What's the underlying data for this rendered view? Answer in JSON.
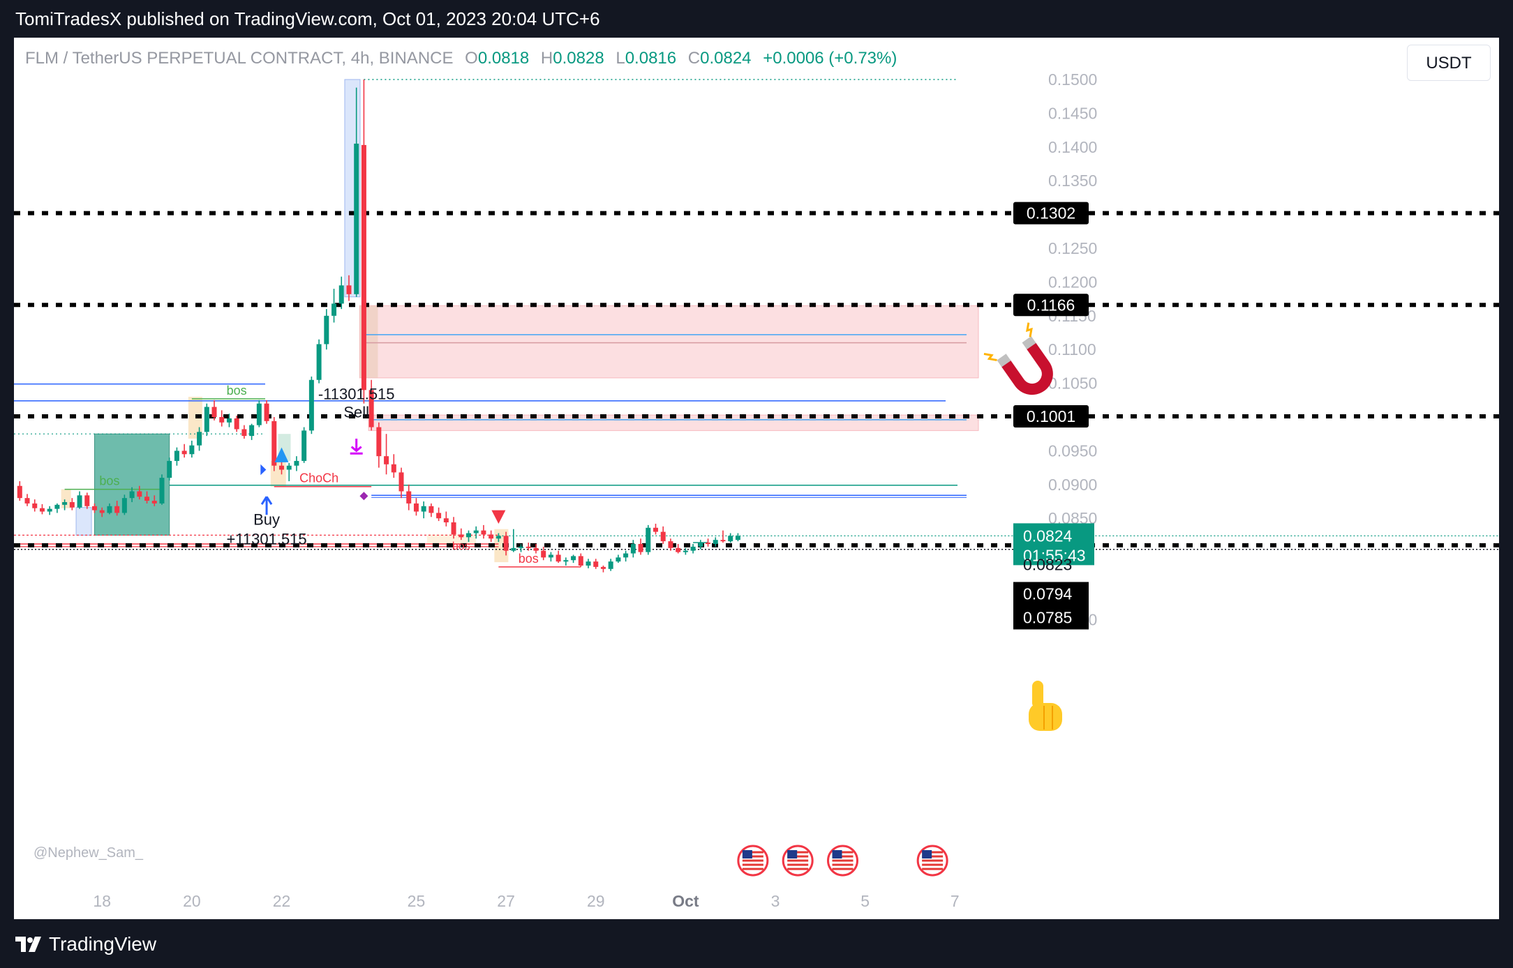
{
  "header": {
    "published_text": "TomiTradesX published on TradingView.com, Oct 01, 2023 20:04 UTC+6"
  },
  "legend": {
    "symbol": "FLM / TetherUS PERPETUAL CONTRACT, 4h, BINANCE",
    "o_label": "O",
    "o_value": "0.0818",
    "h_label": "H",
    "h_value": "0.0828",
    "l_label": "L",
    "l_value": "0.0816",
    "c_label": "C",
    "c_value": "0.0824",
    "change": "+0.0006 (+0.73%)"
  },
  "currency_button": "USDT",
  "watermark": "@Nephew_Sam_",
  "footer": {
    "brand": "TradingView"
  },
  "colors": {
    "up": "#089981",
    "down": "#f23645",
    "background": "#131722",
    "zone_red": "#fcdfe1",
    "zone_blue": "#dbe6fb",
    "zone_orange": "#fbe7c8",
    "zone_teal": "#5fb5a4",
    "price_badge": "#089981",
    "level_badge": "#000000"
  },
  "chart_data": {
    "type": "candlestick",
    "interval": "4h",
    "y_range": [
      0.0675,
      0.1525
    ],
    "y_ticks": [
      "0.0700",
      "0.0850",
      "0.0900",
      "0.0950",
      "0.1050",
      "0.1100",
      "0.1150",
      "0.1200",
      "0.1250",
      "0.1350",
      "0.1400",
      "0.1450",
      "0.1500"
    ],
    "x_ticks": [
      {
        "label": "18",
        "index": 11
      },
      {
        "label": "20",
        "index": 23
      },
      {
        "label": "22",
        "index": 35
      },
      {
        "label": "25",
        "index": 53
      },
      {
        "label": "27",
        "index": 65
      },
      {
        "label": "29",
        "index": 77
      },
      {
        "label": "Oct",
        "index": 89
      },
      {
        "label": "3",
        "index": 101
      },
      {
        "label": "5",
        "index": 113
      },
      {
        "label": "7",
        "index": 125
      }
    ],
    "candles": [
      [
        0.0898,
        0.0905,
        0.0876,
        0.088
      ],
      [
        0.088,
        0.0886,
        0.0868,
        0.0872
      ],
      [
        0.0872,
        0.0878,
        0.086,
        0.0865
      ],
      [
        0.0865,
        0.0871,
        0.0856,
        0.086
      ],
      [
        0.086,
        0.0868,
        0.0855,
        0.0864
      ],
      [
        0.0864,
        0.0872,
        0.0858,
        0.087
      ],
      [
        0.087,
        0.0878,
        0.0862,
        0.0874
      ],
      [
        0.0874,
        0.088,
        0.0862,
        0.0866
      ],
      [
        0.0866,
        0.089,
        0.0864,
        0.0884
      ],
      [
        0.0884,
        0.0888,
        0.0864,
        0.0868
      ],
      [
        0.0868,
        0.0872,
        0.0858,
        0.0862
      ],
      [
        0.0862,
        0.0866,
        0.0852,
        0.0858
      ],
      [
        0.0858,
        0.0872,
        0.0856,
        0.0868
      ],
      [
        0.0868,
        0.0876,
        0.0854,
        0.0858
      ],
      [
        0.0858,
        0.0885,
        0.0855,
        0.088
      ],
      [
        0.088,
        0.0896,
        0.0874,
        0.089
      ],
      [
        0.089,
        0.0898,
        0.0878,
        0.0882
      ],
      [
        0.0882,
        0.089,
        0.0872,
        0.0876
      ],
      [
        0.0876,
        0.0884,
        0.0868,
        0.0872
      ],
      [
        0.0872,
        0.0915,
        0.087,
        0.091
      ],
      [
        0.091,
        0.094,
        0.0906,
        0.0935
      ],
      [
        0.0935,
        0.0955,
        0.0928,
        0.095
      ],
      [
        0.095,
        0.096,
        0.094,
        0.0945
      ],
      [
        0.0945,
        0.0965,
        0.094,
        0.0958
      ],
      [
        0.0958,
        0.0985,
        0.095,
        0.0978
      ],
      [
        0.0978,
        0.102,
        0.0972,
        0.1015
      ],
      [
        0.1015,
        0.1025,
        0.0995,
        0.1
      ],
      [
        0.1,
        0.101,
        0.0986,
        0.0992
      ],
      [
        0.0992,
        0.1005,
        0.0985,
        0.0998
      ],
      [
        0.0998,
        0.1002,
        0.0978,
        0.0982
      ],
      [
        0.0982,
        0.0988,
        0.0968,
        0.0972
      ],
      [
        0.0972,
        0.099,
        0.0966,
        0.0988
      ],
      [
        0.0988,
        0.1025,
        0.0985,
        0.102
      ],
      [
        0.102,
        0.1025,
        0.099,
        0.0994
      ],
      [
        0.0994,
        0.1,
        0.092,
        0.0928
      ],
      [
        0.0928,
        0.0935,
        0.0915,
        0.0922
      ],
      [
        0.0922,
        0.0932,
        0.0905,
        0.0928
      ],
      [
        0.0928,
        0.0942,
        0.092,
        0.0935
      ],
      [
        0.0935,
        0.0985,
        0.0932,
        0.098
      ],
      [
        0.098,
        0.106,
        0.0975,
        0.1055
      ],
      [
        0.1055,
        0.1115,
        0.105,
        0.1108
      ],
      [
        0.1108,
        0.116,
        0.11,
        0.115
      ],
      [
        0.115,
        0.119,
        0.114,
        0.1168
      ],
      [
        0.1168,
        0.1208,
        0.116,
        0.1195
      ],
      [
        0.1195,
        0.121,
        0.1172,
        0.1182
      ],
      [
        0.1182,
        0.1488,
        0.1178,
        0.1405
      ],
      [
        0.1403,
        0.15,
        0.102,
        0.104
      ],
      [
        0.104,
        0.1055,
        0.098,
        0.0985
      ],
      [
        0.0985,
        0.0992,
        0.0925,
        0.0942
      ],
      [
        0.0942,
        0.0975,
        0.0915,
        0.093
      ],
      [
        0.093,
        0.0945,
        0.091,
        0.0918
      ],
      [
        0.0918,
        0.0925,
        0.088,
        0.089
      ],
      [
        0.089,
        0.09,
        0.0862,
        0.0872
      ],
      [
        0.0872,
        0.088,
        0.0854,
        0.086
      ],
      [
        0.086,
        0.0875,
        0.085,
        0.0868
      ],
      [
        0.0868,
        0.0872,
        0.0852,
        0.0858
      ],
      [
        0.0858,
        0.0866,
        0.0846,
        0.085
      ],
      [
        0.085,
        0.086,
        0.0838,
        0.0844
      ],
      [
        0.0844,
        0.0852,
        0.082,
        0.0826
      ],
      [
        0.0826,
        0.0835,
        0.0818,
        0.0822
      ],
      [
        0.0822,
        0.0832,
        0.0815,
        0.0828
      ],
      [
        0.0828,
        0.0838,
        0.082,
        0.0832
      ],
      [
        0.0832,
        0.084,
        0.082,
        0.0826
      ],
      [
        0.0826,
        0.0832,
        0.0815,
        0.082
      ],
      [
        0.082,
        0.0828,
        0.0815,
        0.0824
      ],
      [
        0.0824,
        0.083,
        0.0795,
        0.0802
      ],
      [
        0.0802,
        0.0834,
        0.08,
        0.0806
      ],
      [
        0.0806,
        0.0812,
        0.08,
        0.0808
      ],
      [
        0.0808,
        0.0814,
        0.0802,
        0.0806
      ],
      [
        0.0806,
        0.0812,
        0.0798,
        0.0802
      ],
      [
        0.0802,
        0.0808,
        0.0788,
        0.0792
      ],
      [
        0.0792,
        0.08,
        0.0786,
        0.0796
      ],
      [
        0.0796,
        0.0802,
        0.0784,
        0.0786
      ],
      [
        0.0786,
        0.0792,
        0.078,
        0.0788
      ],
      [
        0.0788,
        0.0796,
        0.0784,
        0.0794
      ],
      [
        0.0794,
        0.0798,
        0.0778,
        0.078
      ],
      [
        0.078,
        0.079,
        0.0776,
        0.0786
      ],
      [
        0.0786,
        0.079,
        0.0775,
        0.0778
      ],
      [
        0.0778,
        0.078,
        0.077,
        0.0775
      ],
      [
        0.0775,
        0.079,
        0.0772,
        0.0786
      ],
      [
        0.0786,
        0.0796,
        0.0784,
        0.0792
      ],
      [
        0.0792,
        0.0802,
        0.0786,
        0.0798
      ],
      [
        0.0798,
        0.0818,
        0.0792,
        0.0812
      ],
      [
        0.0812,
        0.082,
        0.0796,
        0.08
      ],
      [
        0.08,
        0.084,
        0.0796,
        0.0836
      ],
      [
        0.0836,
        0.0842,
        0.0826,
        0.083
      ],
      [
        0.083,
        0.0838,
        0.0812,
        0.0816
      ],
      [
        0.0816,
        0.082,
        0.0802,
        0.0806
      ],
      [
        0.0806,
        0.0812,
        0.0798,
        0.08
      ],
      [
        0.08,
        0.0806,
        0.0796,
        0.0802
      ],
      [
        0.0802,
        0.0812,
        0.0798,
        0.0808
      ],
      [
        0.0808,
        0.0818,
        0.0804,
        0.0814
      ],
      [
        0.0814,
        0.082,
        0.0808,
        0.0812
      ],
      [
        0.0812,
        0.0822,
        0.0808,
        0.0818
      ],
      [
        0.0818,
        0.0832,
        0.0814,
        0.0816
      ],
      [
        0.0816,
        0.0828,
        0.0814,
        0.0824
      ],
      [
        0.0818,
        0.0828,
        0.0816,
        0.0824
      ]
    ],
    "key_levels": [
      {
        "value": 0.1302,
        "label": "0.1302"
      },
      {
        "value": 0.1166,
        "label": "0.1166"
      },
      {
        "value": 0.1001,
        "label": "0.1001"
      },
      {
        "value": 0.081,
        "label": ""
      }
    ],
    "price_labels": [
      {
        "value": 0.0823,
        "label": "0.0823"
      },
      {
        "value": 0.0794,
        "label": "0.0794"
      },
      {
        "value": 0.0785,
        "label": "0.0785"
      }
    ],
    "current_price": {
      "value": 0.0824,
      "label": "0.0824",
      "countdown": "01:55:43"
    },
    "annotations": {
      "bos": "bos",
      "choch": "ChoCh",
      "buy": "Buy",
      "buy_amount": "+11301.515",
      "sell": "Sell",
      "sell_amount": "-11301.515"
    }
  }
}
